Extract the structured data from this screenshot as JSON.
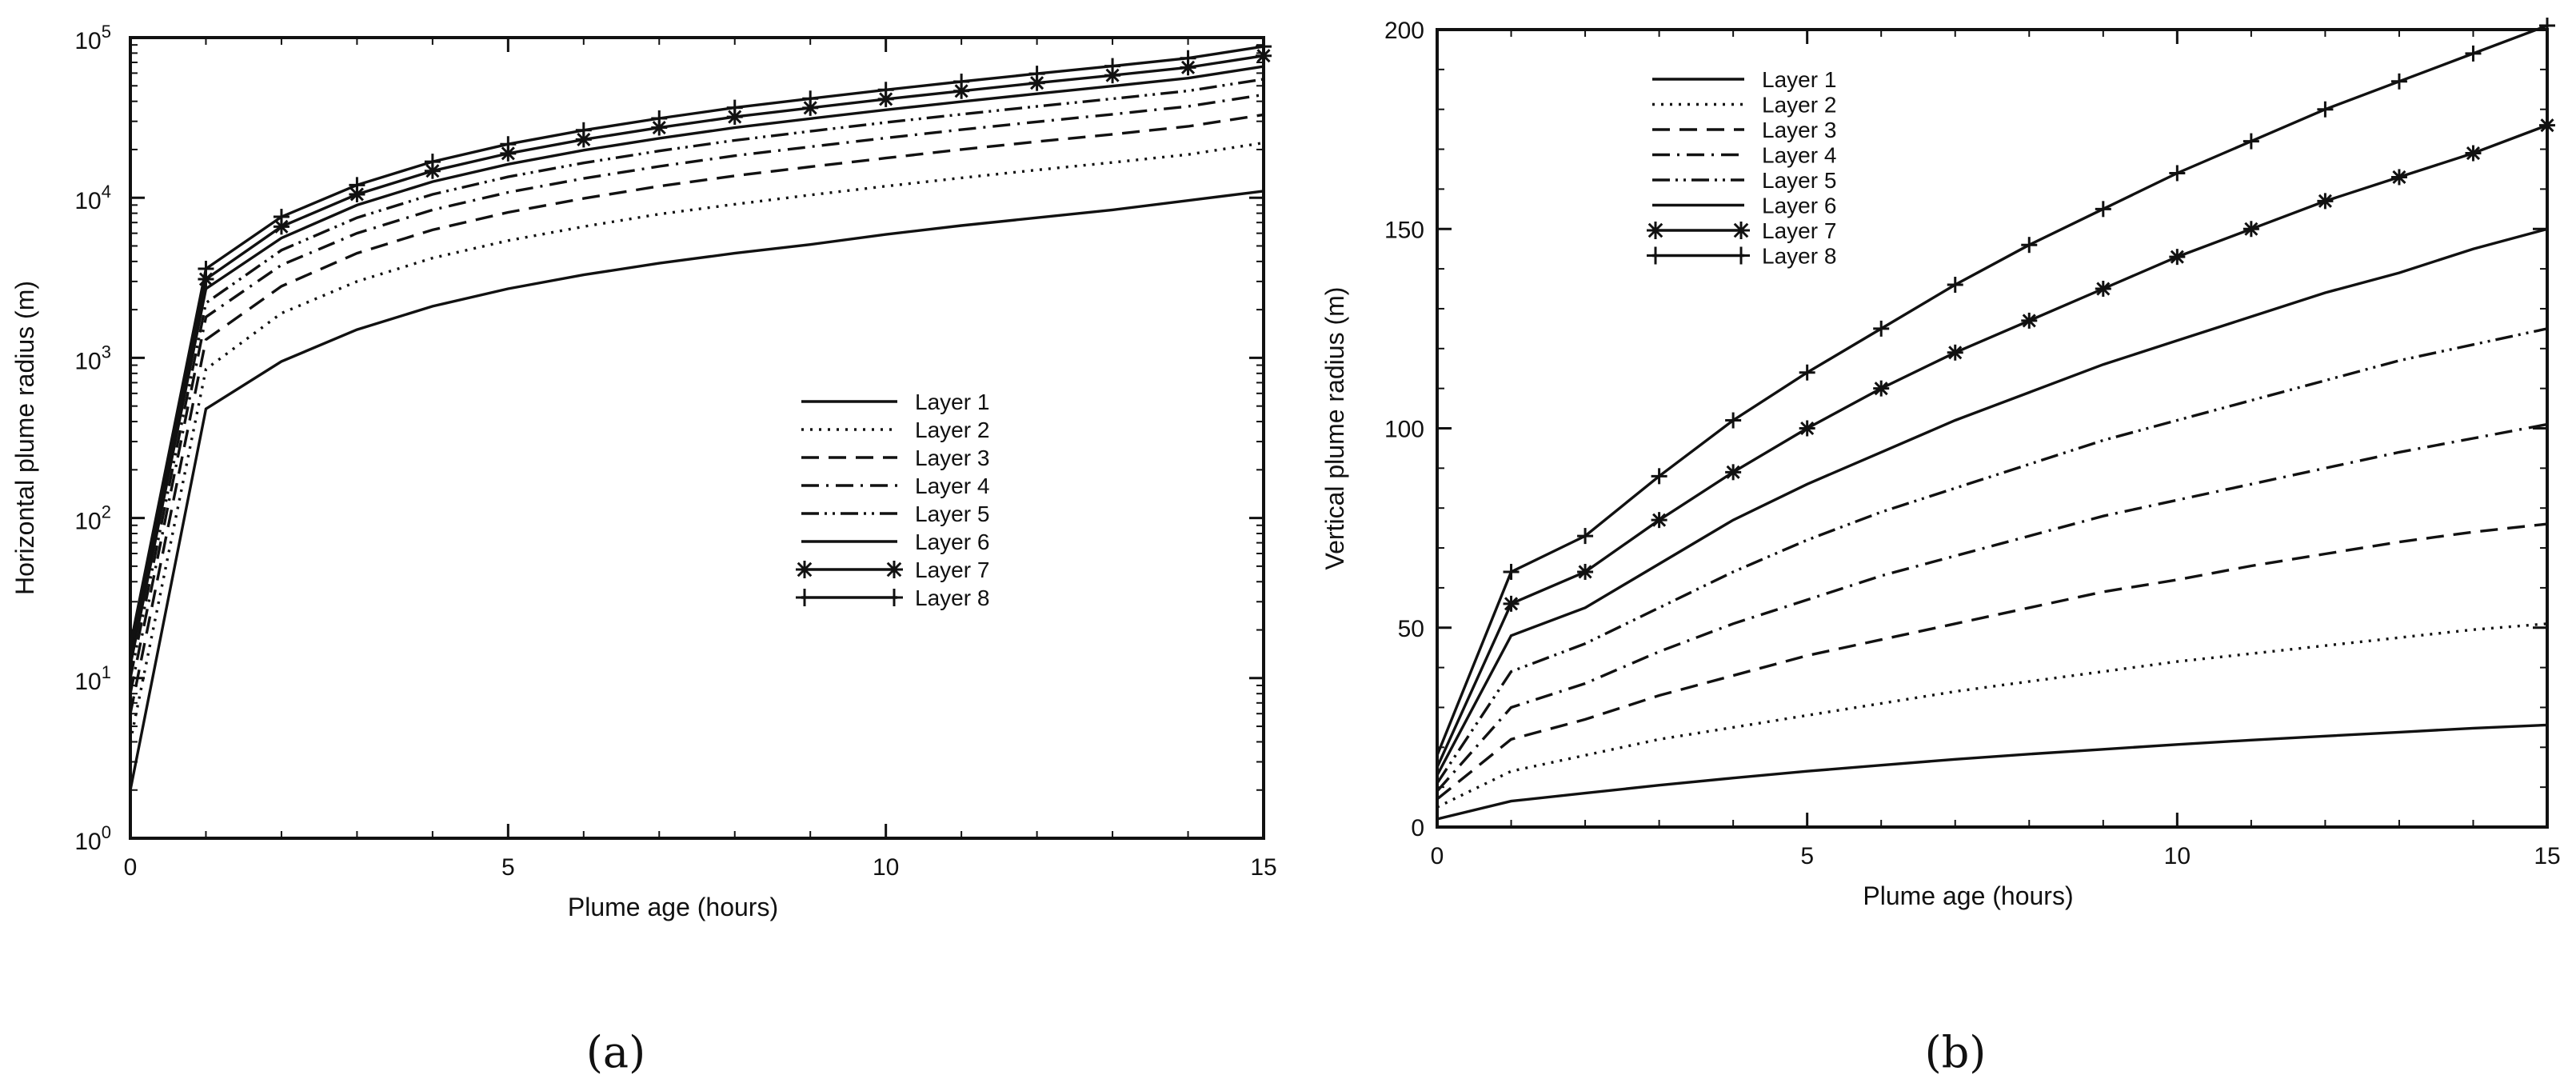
{
  "chart_data": [
    {
      "type": "line",
      "panel_label": "(a)",
      "xlabel": "Plume age (hours)",
      "ylabel": "Horizontal plume radius (m)",
      "xlim": [
        0,
        15
      ],
      "ylim": [
        1,
        100000
      ],
      "yscale": "log",
      "x_ticks": [
        0,
        5,
        10,
        15
      ],
      "y_ticks": [
        {
          "value": 1,
          "base": "10",
          "exp": "0"
        },
        {
          "value": 10,
          "base": "10",
          "exp": "1"
        },
        {
          "value": 100,
          "base": "10",
          "exp": "2"
        },
        {
          "value": 1000,
          "base": "10",
          "exp": "3"
        },
        {
          "value": 10000,
          "base": "10",
          "exp": "4"
        },
        {
          "value": 100000,
          "base": "10",
          "exp": "5"
        }
      ],
      "legend_position": "center-right",
      "series": [
        {
          "name": "Layer 1",
          "style": "solid",
          "marker": "none",
          "x": [
            0,
            1,
            2,
            3,
            4,
            5,
            6,
            7,
            8,
            9,
            10,
            11,
            12,
            13,
            14,
            15
          ],
          "values": [
            2,
            480,
            950,
            1500,
            2100,
            2700,
            3300,
            3900,
            4500,
            5100,
            5900,
            6700,
            7500,
            8400,
            9600,
            11000
          ]
        },
        {
          "name": "Layer 2",
          "style": "dotted",
          "marker": "none",
          "x": [
            0,
            1,
            2,
            3,
            4,
            5,
            6,
            7,
            8,
            9,
            10,
            11,
            12,
            13,
            14,
            15
          ],
          "values": [
            4,
            850,
            1900,
            3000,
            4200,
            5400,
            6600,
            7900,
            9100,
            10400,
            11800,
            13300,
            14900,
            16600,
            18600,
            22000
          ]
        },
        {
          "name": "Layer 3",
          "style": "dashed",
          "marker": "none",
          "x": [
            0,
            1,
            2,
            3,
            4,
            5,
            6,
            7,
            8,
            9,
            10,
            11,
            12,
            13,
            14,
            15
          ],
          "values": [
            6,
            1300,
            2800,
            4500,
            6300,
            8100,
            9900,
            11800,
            13700,
            15600,
            17700,
            20000,
            22400,
            24900,
            27900,
            33000
          ]
        },
        {
          "name": "Layer 4",
          "style": "dashdot",
          "marker": "none",
          "x": [
            0,
            1,
            2,
            3,
            4,
            5,
            6,
            7,
            8,
            9,
            10,
            11,
            12,
            13,
            14,
            15
          ],
          "values": [
            8,
            1800,
            3800,
            6000,
            8400,
            10800,
            13200,
            15700,
            18300,
            20800,
            23600,
            26600,
            29800,
            33200,
            37200,
            44000
          ]
        },
        {
          "name": "Layer 5",
          "style": "dashdotdot",
          "marker": "none",
          "x": [
            0,
            1,
            2,
            3,
            4,
            5,
            6,
            7,
            8,
            9,
            10,
            11,
            12,
            13,
            14,
            15
          ],
          "values": [
            10,
            2200,
            4700,
            7500,
            10500,
            13500,
            16500,
            19600,
            22800,
            26000,
            29500,
            33200,
            37200,
            41500,
            46500,
            55000
          ]
        },
        {
          "name": "Layer 6",
          "style": "solid",
          "marker": "none",
          "x": [
            0,
            1,
            2,
            3,
            4,
            5,
            6,
            7,
            8,
            9,
            10,
            11,
            12,
            13,
            14,
            15
          ],
          "values": [
            12,
            2700,
            5600,
            9000,
            12600,
            16200,
            19800,
            23500,
            27400,
            31200,
            35400,
            39800,
            44600,
            49800,
            55800,
            66000
          ]
        },
        {
          "name": "Layer 7",
          "style": "solid",
          "marker": "asterisk",
          "x": [
            0,
            1,
            2,
            3,
            4,
            5,
            6,
            7,
            8,
            9,
            10,
            11,
            12,
            13,
            14,
            15
          ],
          "values": [
            14,
            3100,
            6600,
            10500,
            14700,
            18900,
            23100,
            27400,
            32000,
            36400,
            41300,
            46400,
            52100,
            58100,
            65100,
            77000
          ]
        },
        {
          "name": "Layer 8",
          "style": "solid",
          "marker": "plus",
          "x": [
            0,
            1,
            2,
            3,
            4,
            5,
            6,
            7,
            8,
            9,
            10,
            11,
            12,
            13,
            14,
            15
          ],
          "values": [
            16,
            3600,
            7600,
            12000,
            16800,
            21600,
            26400,
            31300,
            36500,
            41600,
            47200,
            53100,
            59500,
            66400,
            74400,
            88000
          ]
        }
      ]
    },
    {
      "type": "line",
      "panel_label": "(b)",
      "xlabel": "Plume age (hours)",
      "ylabel": "Vertical plume radius (m)",
      "xlim": [
        0,
        15
      ],
      "ylim": [
        0,
        200
      ],
      "yscale": "linear",
      "x_ticks": [
        0,
        5,
        10,
        15
      ],
      "y_ticks": [
        0,
        50,
        100,
        150,
        200
      ],
      "legend_position": "top-left",
      "series": [
        {
          "name": "Layer 1",
          "style": "solid",
          "marker": "none",
          "x": [
            0,
            1,
            2,
            3,
            4,
            5,
            6,
            7,
            8,
            9,
            10,
            11,
            12,
            13,
            14,
            15
          ],
          "values": [
            2,
            6.5,
            8.5,
            10.5,
            12.3,
            14,
            15.5,
            17,
            18.3,
            19.5,
            20.7,
            21.8,
            22.8,
            23.8,
            24.8,
            25.6
          ]
        },
        {
          "name": "Layer 2",
          "style": "dotted",
          "marker": "none",
          "x": [
            0,
            1,
            2,
            3,
            4,
            5,
            6,
            7,
            8,
            9,
            10,
            11,
            12,
            13,
            14,
            15
          ],
          "values": [
            5,
            14,
            18,
            22,
            25,
            28,
            31,
            34,
            36.5,
            39,
            41.5,
            43.5,
            45.5,
            47.5,
            49.5,
            51
          ]
        },
        {
          "name": "Layer 3",
          "style": "dashed",
          "marker": "none",
          "x": [
            0,
            1,
            2,
            3,
            4,
            5,
            6,
            7,
            8,
            9,
            10,
            11,
            12,
            13,
            14,
            15
          ],
          "values": [
            7,
            22,
            27,
            33,
            38,
            43,
            47,
            51,
            55,
            59,
            62,
            65.5,
            68.5,
            71.5,
            74,
            76
          ]
        },
        {
          "name": "Layer 4",
          "style": "dashdot",
          "marker": "none",
          "x": [
            0,
            1,
            2,
            3,
            4,
            5,
            6,
            7,
            8,
            9,
            10,
            11,
            12,
            13,
            14,
            15
          ],
          "values": [
            9,
            30,
            36,
            44,
            51,
            57,
            63,
            68,
            73,
            78,
            82,
            86,
            90,
            94,
            97.5,
            101
          ]
        },
        {
          "name": "Layer 5",
          "style": "dashdotdot",
          "marker": "none",
          "x": [
            0,
            1,
            2,
            3,
            4,
            5,
            6,
            7,
            8,
            9,
            10,
            11,
            12,
            13,
            14,
            15
          ],
          "values": [
            11,
            39,
            46,
            55,
            64,
            72,
            79,
            85,
            91,
            97,
            102,
            107,
            112,
            117,
            121,
            125
          ]
        },
        {
          "name": "Layer 6",
          "style": "solid",
          "marker": "none",
          "x": [
            0,
            1,
            2,
            3,
            4,
            5,
            6,
            7,
            8,
            9,
            10,
            11,
            12,
            13,
            14,
            15
          ],
          "values": [
            13,
            48,
            55,
            66,
            77,
            86,
            94,
            102,
            109,
            116,
            122,
            128,
            134,
            139,
            145,
            150
          ]
        },
        {
          "name": "Layer 7",
          "style": "solid",
          "marker": "asterisk",
          "x": [
            0,
            1,
            2,
            3,
            4,
            5,
            6,
            7,
            8,
            9,
            10,
            11,
            12,
            13,
            14,
            15
          ],
          "values": [
            15,
            56,
            64,
            77,
            89,
            100,
            110,
            119,
            127,
            135,
            143,
            150,
            157,
            163,
            169,
            176
          ]
        },
        {
          "name": "Layer 8",
          "style": "solid",
          "marker": "plus",
          "x": [
            0,
            1,
            2,
            3,
            4,
            5,
            6,
            7,
            8,
            9,
            10,
            11,
            12,
            13,
            14,
            15
          ],
          "values": [
            18,
            64,
            73,
            88,
            102,
            114,
            125,
            136,
            146,
            155,
            164,
            172,
            180,
            187,
            194,
            201
          ]
        }
      ]
    }
  ]
}
